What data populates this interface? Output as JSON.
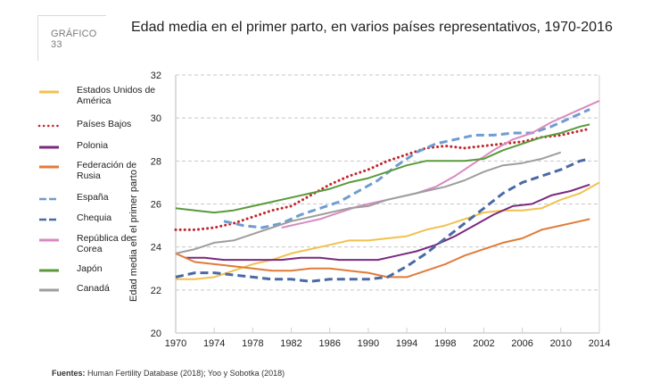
{
  "figure_tag": "GRÁFICO 33",
  "title": "Edad media en el primer parto, en varios países representativos, 1970-2016",
  "source_label": "Fuentes:",
  "source_text": " Human Fertility Database (2018); Yoo y Sobotka (2018)",
  "chart_data": {
    "type": "line",
    "title": "Edad media en el primer parto, en varios países representativos, 1970-2016",
    "xlabel": "",
    "ylabel": "Edad media en el primer parto",
    "xlim": [
      1970,
      2014
    ],
    "ylim": [
      20,
      32
    ],
    "xticks": [
      1970,
      1974,
      1978,
      1982,
      1986,
      1990,
      1994,
      1998,
      2002,
      2006,
      2010,
      2014
    ],
    "yticks": [
      20,
      22,
      24,
      26,
      28,
      30,
      32
    ],
    "grid": "horizontal-dashed",
    "legend": "left",
    "series": [
      {
        "name": "Estados Unidos de América",
        "color": "#f2c14e",
        "dash": "solid",
        "x": [
          1970,
          1972,
          1974,
          1976,
          1978,
          1980,
          1982,
          1984,
          1986,
          1988,
          1990,
          1992,
          1994,
          1996,
          1998,
          2000,
          2002,
          2004,
          2006,
          2008,
          2010,
          2012,
          2014
        ],
        "y": [
          22.5,
          22.5,
          22.6,
          22.9,
          23.2,
          23.4,
          23.7,
          23.9,
          24.1,
          24.3,
          24.3,
          24.4,
          24.5,
          24.8,
          25.0,
          25.3,
          25.6,
          25.7,
          25.7,
          25.8,
          26.2,
          26.5,
          27.0
        ]
      },
      {
        "name": "Países Bajos",
        "color": "#c0262d",
        "dash": "dot",
        "x": [
          1970,
          1972,
          1974,
          1976,
          1978,
          1980,
          1982,
          1984,
          1986,
          1988,
          1990,
          1992,
          1994,
          1996,
          1998,
          2000,
          2002,
          2004,
          2006,
          2008,
          2010,
          2012,
          2013
        ],
        "y": [
          24.8,
          24.8,
          24.9,
          25.1,
          25.4,
          25.7,
          25.9,
          26.4,
          26.9,
          27.3,
          27.6,
          28.0,
          28.3,
          28.6,
          28.7,
          28.6,
          28.7,
          28.8,
          28.9,
          29.1,
          29.2,
          29.4,
          29.5
        ]
      },
      {
        "name": "Polonia",
        "color": "#7b2a7e",
        "dash": "solid",
        "x": [
          1971,
          1973,
          1975,
          1977,
          1979,
          1981,
          1983,
          1985,
          1987,
          1989,
          1991,
          1993,
          1995,
          1997,
          1999,
          2001,
          2003,
          2005,
          2007,
          2009,
          2011,
          2013
        ],
        "y": [
          23.5,
          23.5,
          23.4,
          23.4,
          23.4,
          23.4,
          23.5,
          23.5,
          23.4,
          23.4,
          23.4,
          23.6,
          23.8,
          24.1,
          24.5,
          25.0,
          25.5,
          25.9,
          26.0,
          26.4,
          26.6,
          26.9
        ]
      },
      {
        "name": "Federación de Rusia",
        "color": "#e07b39",
        "dash": "solid",
        "x": [
          1970,
          1972,
          1974,
          1976,
          1978,
          1980,
          1982,
          1984,
          1986,
          1988,
          1990,
          1992,
          1994,
          1996,
          1998,
          2000,
          2002,
          2004,
          2006,
          2008,
          2010,
          2012,
          2013
        ],
        "y": [
          23.7,
          23.3,
          23.2,
          23.1,
          23.0,
          22.9,
          22.9,
          23.0,
          23.0,
          22.9,
          22.8,
          22.6,
          22.6,
          22.9,
          23.2,
          23.6,
          23.9,
          24.2,
          24.4,
          24.8,
          25.0,
          25.2,
          25.3
        ]
      },
      {
        "name": "España",
        "color": "#6f9cd1",
        "dash": "dash",
        "x": [
          1975,
          1977,
          1979,
          1981,
          1983,
          1985,
          1987,
          1989,
          1991,
          1993,
          1995,
          1997,
          1999,
          2001,
          2003,
          2005,
          2007,
          2009,
          2011,
          2013
        ],
        "y": [
          25.2,
          25.0,
          24.9,
          25.1,
          25.5,
          25.8,
          26.1,
          26.6,
          27.1,
          27.8,
          28.4,
          28.8,
          29.0,
          29.2,
          29.2,
          29.3,
          29.3,
          29.6,
          30.0,
          30.4
        ]
      },
      {
        "name": "Chequia",
        "color": "#4a6aa6",
        "dash": "dash",
        "x": [
          1970,
          1972,
          1974,
          1976,
          1978,
          1980,
          1982,
          1984,
          1986,
          1988,
          1990,
          1992,
          1994,
          1996,
          1998,
          2000,
          2002,
          2004,
          2006,
          2008,
          2010,
          2012,
          2013
        ],
        "y": [
          22.6,
          22.8,
          22.8,
          22.7,
          22.6,
          22.5,
          22.5,
          22.4,
          22.5,
          22.5,
          22.5,
          22.6,
          23.1,
          23.7,
          24.4,
          25.1,
          25.8,
          26.5,
          27.0,
          27.3,
          27.6,
          28.0,
          28.1
        ]
      },
      {
        "name": "República de Corea",
        "color": "#d88ac0",
        "dash": "solid",
        "x": [
          1981,
          1983,
          1985,
          1987,
          1989,
          1991,
          1993,
          1995,
          1997,
          1999,
          2001,
          2003,
          2005,
          2007,
          2009,
          2011,
          2013,
          2014
        ],
        "y": [
          24.9,
          25.1,
          25.3,
          25.6,
          25.9,
          26.1,
          26.3,
          26.5,
          26.8,
          27.3,
          27.9,
          28.5,
          29.0,
          29.3,
          29.8,
          30.2,
          30.6,
          30.8
        ]
      },
      {
        "name": "Japón",
        "color": "#5a9a3c",
        "dash": "solid",
        "x": [
          1970,
          1972,
          1974,
          1976,
          1978,
          1980,
          1982,
          1984,
          1986,
          1988,
          1990,
          1992,
          1994,
          1996,
          1998,
          2000,
          2002,
          2004,
          2006,
          2008,
          2010,
          2012,
          2013
        ],
        "y": [
          25.8,
          25.7,
          25.6,
          25.7,
          25.9,
          26.1,
          26.3,
          26.5,
          26.7,
          27.0,
          27.2,
          27.5,
          27.8,
          28.0,
          28.0,
          28.0,
          28.1,
          28.5,
          28.8,
          29.1,
          29.3,
          29.6,
          29.7
        ]
      },
      {
        "name": "Canadá",
        "color": "#9e9e9e",
        "dash": "solid",
        "x": [
          1970,
          1972,
          1974,
          1976,
          1978,
          1980,
          1982,
          1984,
          1986,
          1988,
          1990,
          1992,
          1994,
          1996,
          1998,
          2000,
          2002,
          2004,
          2006,
          2008,
          2010
        ],
        "y": [
          23.7,
          23.9,
          24.2,
          24.3,
          24.6,
          24.9,
          25.2,
          25.4,
          25.6,
          25.8,
          25.9,
          26.2,
          26.4,
          26.6,
          26.8,
          27.1,
          27.5,
          27.8,
          27.9,
          28.1,
          28.4
        ]
      }
    ]
  }
}
